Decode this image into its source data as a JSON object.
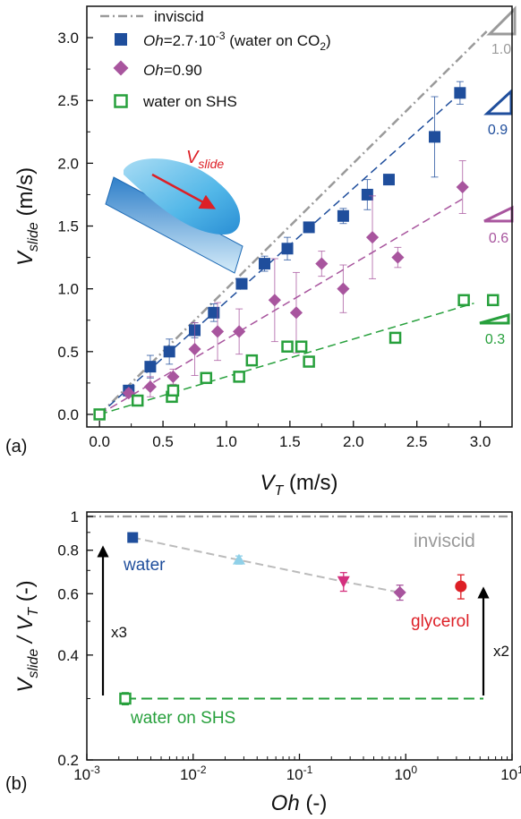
{
  "chart_data": [
    {
      "type": "scatter",
      "panel_label": "(a)",
      "xlabel": {
        "main": "V",
        "sub": "T",
        "unit": " (m/s)"
      },
      "ylabel": {
        "main": "V",
        "sub": "slide",
        "unit": " (m/s)"
      },
      "xlim": [
        -0.1,
        3.25
      ],
      "ylim": [
        -0.1,
        3.25
      ],
      "xticks": [
        "0.0",
        "0.5",
        "1.0",
        "1.5",
        "2.0",
        "2.5",
        "3.0"
      ],
      "yticks": [
        "0.0",
        "0.5",
        "1.0",
        "1.5",
        "2.0",
        "2.5",
        "3.0"
      ],
      "grid": false,
      "legend_position": "top-left",
      "legend": {
        "inviscid": "inviscid",
        "water_co2": {
          "italic": "Oh",
          "text": "=2.7·10",
          "sup": "-3",
          "text2": " (water on CO",
          "sub": "2",
          "text3": ")"
        },
        "oh090": {
          "italic": "Oh",
          "text": "=0.90"
        },
        "shs": "water on SHS"
      },
      "inset_label": {
        "main": "V",
        "sub": "slide"
      },
      "slopes": {
        "inviscid": "1.0",
        "water_co2": "0.9",
        "oh090": "0.6",
        "shs": "0.3"
      },
      "colors": {
        "inviscid": "#9a9a9a",
        "water_co2": "#1f4e9c",
        "oh090": "#a8559e",
        "shs": "#27a03c",
        "arrow": "#dd1f26"
      },
      "series": [
        {
          "key": "water_co2",
          "marker": "filled-square",
          "x": [
            0.23,
            0.4,
            0.55,
            0.75,
            0.9,
            1.12,
            1.3,
            1.48,
            1.65,
            1.92,
            2.11,
            2.28,
            2.64,
            2.84
          ],
          "y": [
            0.19,
            0.38,
            0.5,
            0.67,
            0.81,
            1.04,
            1.2,
            1.32,
            1.49,
            1.58,
            1.75,
            1.87,
            2.21,
            2.56
          ],
          "err": [
            0.03,
            0.09,
            0.1,
            0.06,
            0.07,
            0.04,
            0.06,
            0.09,
            0.04,
            0.06,
            0.12,
            0.04,
            0.32,
            0.09
          ]
        },
        {
          "key": "oh090",
          "marker": "filled-diamond",
          "x": [
            0.23,
            0.4,
            0.58,
            0.75,
            0.93,
            1.1,
            1.38,
            1.55,
            1.75,
            1.92,
            2.15,
            2.35,
            2.86
          ],
          "y": [
            0.17,
            0.22,
            0.3,
            0.52,
            0.66,
            0.66,
            0.91,
            0.81,
            1.2,
            1.0,
            1.41,
            1.25,
            1.81
          ],
          "err": [
            0.03,
            0.08,
            0.06,
            0.21,
            0.23,
            0.18,
            0.33,
            0.32,
            0.1,
            0.19,
            0.33,
            0.08,
            0.21
          ]
        },
        {
          "key": "shs",
          "marker": "open-square",
          "x": [
            0.0,
            0.3,
            0.57,
            0.58,
            0.84,
            1.1,
            1.2,
            1.48,
            1.59,
            1.65,
            2.33,
            2.87,
            3.1
          ],
          "y": [
            0.0,
            0.11,
            0.14,
            0.19,
            0.29,
            0.3,
            0.43,
            0.54,
            0.54,
            0.42,
            0.61,
            0.91,
            0.91
          ]
        }
      ],
      "fit_lines": [
        {
          "key": "inviscid",
          "slope": 1.0,
          "x_end": 3.05
        },
        {
          "key": "water_co2",
          "slope": 0.9,
          "x_end": 2.88
        },
        {
          "key": "oh090",
          "slope": 0.6,
          "x_end": 2.88
        },
        {
          "key": "shs",
          "slope": 0.3,
          "x_end": 2.95
        }
      ]
    },
    {
      "type": "scatter",
      "panel_label": "(b)",
      "xscale": "log",
      "yscale": "log",
      "xlabel": {
        "main": "Oh",
        "unit": " (-)"
      },
      "ylabel": {
        "main": "V",
        "sub": "slide",
        "mid": " / V",
        "sub2": "T",
        "unit": " (-)"
      },
      "xlim": [
        0.001,
        10
      ],
      "ylim": [
        0.2,
        1.03
      ],
      "xticks": [
        {
          "base": "10",
          "exp": "-3"
        },
        {
          "base": "10",
          "exp": "-2"
        },
        {
          "base": "10",
          "exp": "-1"
        },
        {
          "base": "10",
          "exp": "0"
        },
        {
          "base": "10",
          "exp": "1"
        }
      ],
      "yticks": [
        "0.2",
        "0.4",
        "0.6",
        "0.8",
        "1"
      ],
      "grid": false,
      "labels": {
        "inviscid": "inviscid",
        "water": "water",
        "glycerol": "glycerol",
        "shs": "water on SHS",
        "x3": "x3",
        "x2": "x2"
      },
      "inviscid_y": 1.0,
      "shs_y": 0.3,
      "points": [
        {
          "x": 0.0027,
          "y": 0.87,
          "marker": "square",
          "color": "#1f4e9c",
          "err": 0.015
        },
        {
          "x": 0.027,
          "y": 0.75,
          "marker": "triangle-up",
          "color": "#8fd0e8",
          "err": 0.02
        },
        {
          "x": 0.26,
          "y": 0.65,
          "marker": "triangle-down",
          "color": "#d4307e",
          "err": 0.04
        },
        {
          "x": 0.88,
          "y": 0.605,
          "marker": "diamond",
          "color": "#a8559e",
          "err": 0.03
        },
        {
          "x": 3.3,
          "y": 0.63,
          "marker": "circle",
          "color": "#dd1f26",
          "err": 0.05
        },
        {
          "x": 0.0023,
          "y": 0.3,
          "marker": "open-square",
          "color": "#27a03c",
          "err": 0.012
        }
      ],
      "colors": {
        "inviscid": "#9a9a9a",
        "trend": "#bbbbbb",
        "shs": "#27a03c",
        "water": "#1f4e9c",
        "glycerol": "#dd1f26"
      }
    }
  ]
}
